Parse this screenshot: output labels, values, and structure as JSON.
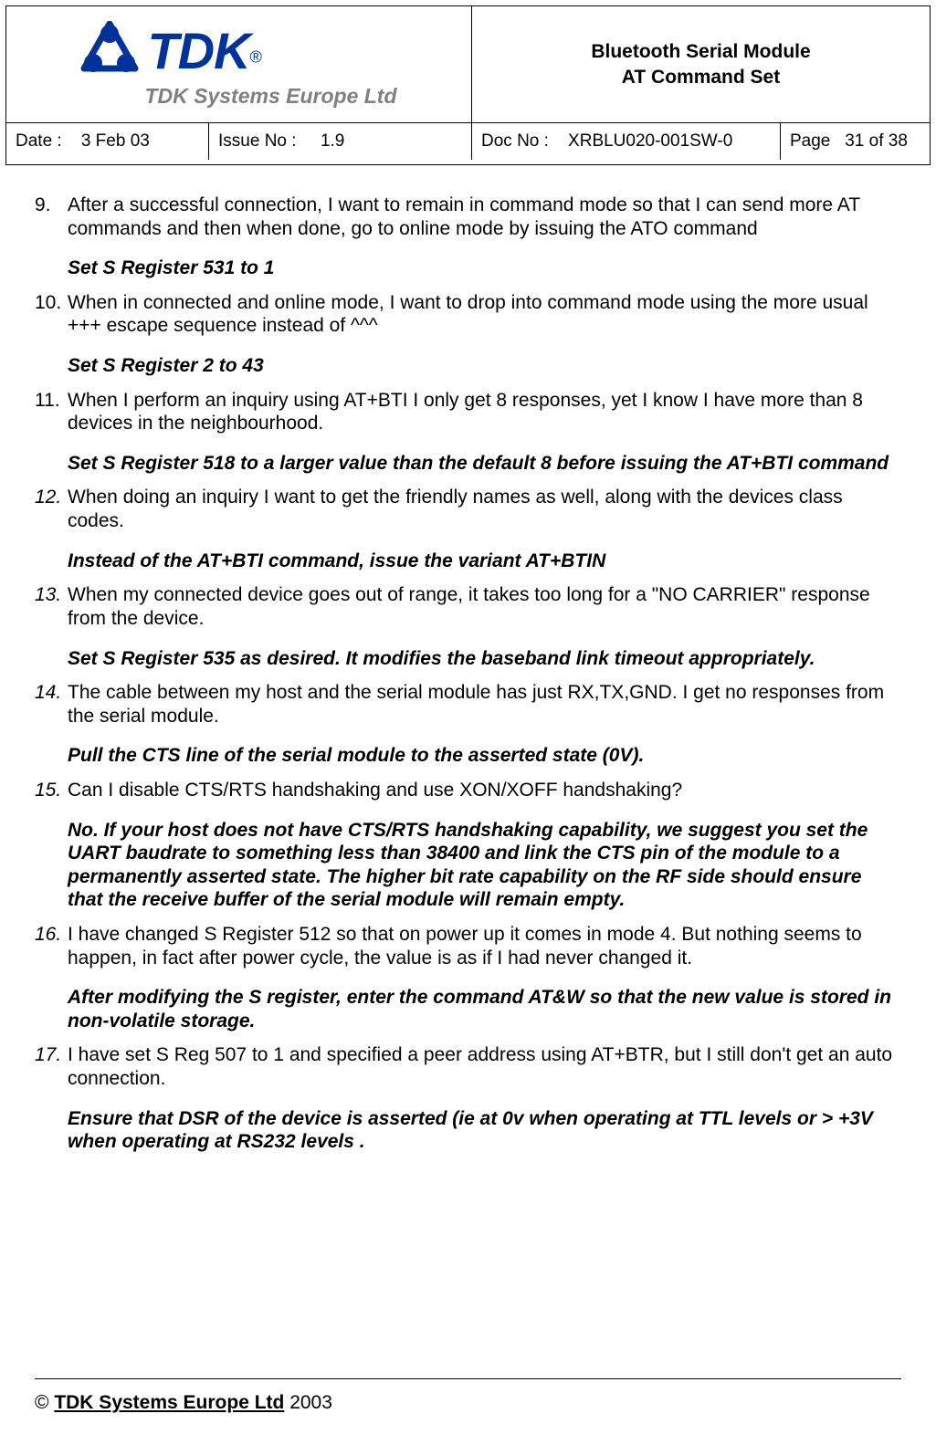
{
  "header": {
    "logo_text": "TDK",
    "logo_reg": "®",
    "logo_sub": "TDK Systems Europe Ltd",
    "title_line1": "Bluetooth Serial Module",
    "title_line2": "AT Command Set"
  },
  "meta": {
    "date_label": "Date :",
    "date_value": "3 Feb 03",
    "issue_label": "Issue No :",
    "issue_value": "1.9",
    "doc_label": "Doc No :",
    "doc_value": "XRBLU020-001SW-0",
    "page_label": "Page",
    "page_value": "31 of 38"
  },
  "items": [
    {
      "num": "9.",
      "num_italic": false,
      "q": "After a successful connection, I want to remain in command mode so that I can send more AT commands and then when done, go to online mode by issuing the ATO command",
      "a": "Set S Register 531 to 1"
    },
    {
      "num": "10.",
      "num_italic": false,
      "q": "When in connected and online mode, I want to drop into command mode using the more usual +++ escape sequence instead of ^^^",
      "a": "Set S Register 2 to 43"
    },
    {
      "num": "11.",
      "num_italic": false,
      "q": "When I perform an inquiry using AT+BTI I only get 8 responses, yet I know I have more than 8 devices in the neighbourhood.",
      "a": "Set S Register 518 to a larger value than the default 8 before issuing the AT+BTI command"
    },
    {
      "num": "12.",
      "num_italic": true,
      "q": "When doing an inquiry I want to get the friendly names as well, along with the devices class codes.",
      "a": "Instead of the AT+BTI command, issue the variant AT+BTIN"
    },
    {
      "num": "13.",
      "num_italic": true,
      "q": "When my connected device goes out of range, it takes too long for a \"NO CARRIER\" response from the device.",
      "a": "Set S Register 535 as desired. It modifies the baseband link timeout appropriately."
    },
    {
      "num": "14.",
      "num_italic": true,
      "q": "The cable between my host and the serial module has just RX,TX,GND. I get no responses from the serial module.",
      "a": "Pull the CTS line of the serial module to the asserted state (0V)."
    },
    {
      "num": "15.",
      "num_italic": true,
      "q": "Can I disable CTS/RTS handshaking and use XON/XOFF handshaking?",
      "a": "No. If your host does not have CTS/RTS handshaking capability, we suggest you set the UART baudrate to something less than 38400 and link the CTS pin of the module to a permanently asserted state. The higher bit rate capability on the RF side should ensure that the receive buffer of the serial module will remain empty."
    },
    {
      "num": "16.",
      "num_italic": true,
      "q": "I have changed S Register 512 so that on power up it comes in mode 4. But nothing seems to happen, in fact after power cycle, the value is as if I had never changed it.",
      "a": "After modifying the S register, enter the command AT&W so that the new value is stored in non-volatile storage."
    },
    {
      "num": "17.",
      "num_italic": true,
      "q": "I have set S Reg 507 to 1 and specified a peer address using AT+BTR, but I still don't get an auto connection.",
      "a": "Ensure that DSR of the device is asserted (ie at 0v when operating at TTL levels or > +3V when operating at RS232 levels  ."
    }
  ],
  "footer": {
    "copyright_prefix": "© ",
    "company": "TDK Systems Europe Ltd",
    "year": " 2003"
  },
  "colors": {
    "logo_blue": "#003399",
    "logo_gray": "#808080",
    "text": "#000000",
    "bg": "#ffffff"
  }
}
